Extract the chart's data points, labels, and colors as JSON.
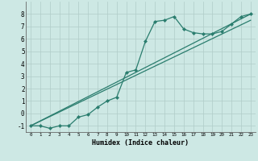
{
  "title": "",
  "xlabel": "Humidex (Indice chaleur)",
  "ylabel": "",
  "xlim": [
    -0.5,
    23.5
  ],
  "ylim": [
    -1.5,
    9.0
  ],
  "xticks": [
    0,
    1,
    2,
    3,
    4,
    5,
    6,
    7,
    8,
    9,
    10,
    11,
    12,
    13,
    14,
    15,
    16,
    17,
    18,
    19,
    20,
    21,
    22,
    23
  ],
  "yticks": [
    -1,
    0,
    1,
    2,
    3,
    4,
    5,
    6,
    7,
    8
  ],
  "background_color": "#cde8e4",
  "grid_color": "#b0ccc8",
  "line_color": "#2a7d6e",
  "curve_x": [
    0,
    1,
    2,
    3,
    4,
    5,
    6,
    7,
    8,
    9,
    10,
    11,
    12,
    13,
    14,
    15,
    16,
    17,
    18,
    19,
    20,
    21,
    22,
    23
  ],
  "curve_y": [
    -1.0,
    -1.0,
    -1.2,
    -1.0,
    -1.0,
    -0.3,
    -0.1,
    0.5,
    1.0,
    1.3,
    3.3,
    3.5,
    5.8,
    7.4,
    7.5,
    7.8,
    6.8,
    6.5,
    6.4,
    6.4,
    6.6,
    7.2,
    7.8,
    8.0
  ],
  "line1_x": [
    0,
    23
  ],
  "line1_y": [
    -1.0,
    8.0
  ],
  "line2_x": [
    0,
    23
  ],
  "line2_y": [
    -1.0,
    7.5
  ]
}
